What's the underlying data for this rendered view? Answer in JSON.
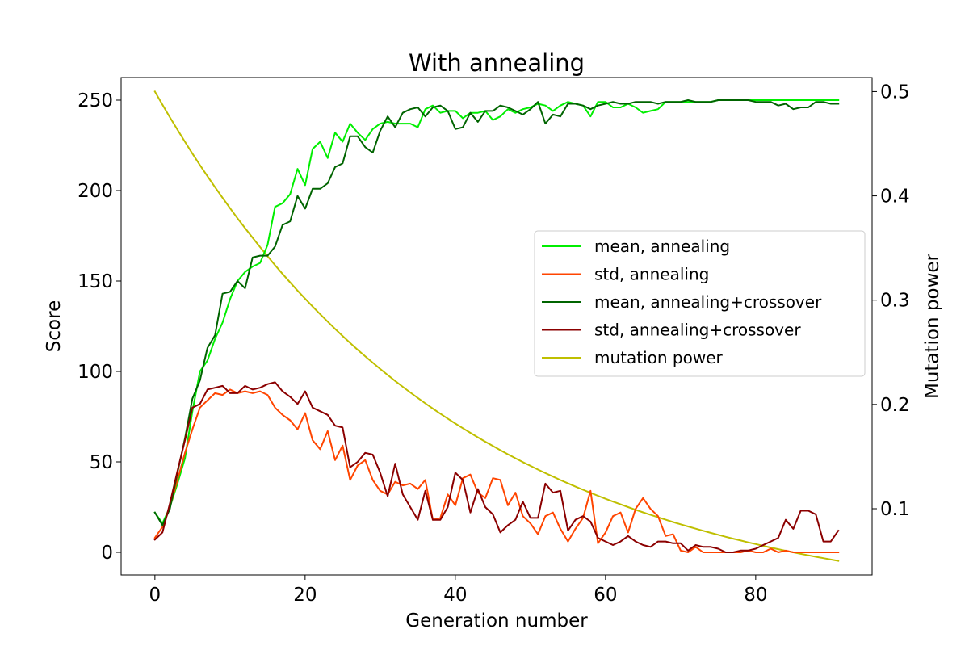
{
  "chart_data": {
    "type": "line",
    "title": "With annealing",
    "xlabel": "Generation number",
    "ylabel": "Score",
    "y2label": "Mutation power",
    "xlim": [
      -4.5,
      95.5
    ],
    "ylim": [
      -12.5,
      262.5
    ],
    "y2lim": [
      0.0365,
      0.5135
    ],
    "xticks": [
      "0",
      "20",
      "40",
      "60",
      "80"
    ],
    "yticks": [
      "0",
      "50",
      "100",
      "150",
      "200",
      "250"
    ],
    "y2ticks": [
      "0.1",
      "0.2",
      "0.3",
      "0.4",
      "0.5"
    ],
    "legend_position": "center-right",
    "series": [
      {
        "name": "mean, annealing",
        "axis": "left",
        "color": "#00ee00",
        "x_start": 0,
        "values": [
          22,
          16,
          25,
          38,
          52,
          78,
          100,
          106,
          118,
          127,
          140,
          150,
          155,
          158,
          160,
          170,
          191,
          193,
          198,
          212,
          203,
          223,
          227,
          218,
          232,
          227,
          237,
          232,
          228,
          234,
          237,
          238,
          237,
          237,
          237,
          235,
          245,
          247,
          243,
          244,
          244,
          240,
          243,
          243,
          244,
          239,
          241,
          245,
          243,
          245,
          246,
          248,
          247,
          244,
          247,
          249,
          248,
          247,
          241,
          249,
          249,
          246,
          246,
          248,
          246,
          243,
          244,
          245,
          249,
          249,
          249,
          249,
          249,
          249,
          249,
          250,
          250,
          250,
          250,
          250,
          250,
          250,
          250,
          250,
          250,
          250,
          250,
          250,
          250,
          250,
          250,
          250
        ]
      },
      {
        "name": "std, annealing",
        "axis": "left",
        "color": "#ff4500",
        "x_start": 0,
        "values": [
          8,
          14,
          25,
          40,
          55,
          68,
          80,
          84,
          88,
          87,
          90,
          88,
          89,
          88,
          89,
          87,
          80,
          76,
          73,
          68,
          77,
          62,
          57,
          67,
          51,
          59,
          40,
          48,
          51,
          40,
          34,
          32,
          39,
          37,
          38,
          35,
          40,
          18,
          19,
          32,
          26,
          41,
          43,
          33,
          30,
          41,
          40,
          26,
          33,
          20,
          16,
          10,
          20,
          22,
          13,
          6,
          13,
          19,
          34,
          5,
          11,
          20,
          22,
          11,
          24,
          30,
          24,
          20,
          9,
          10,
          1,
          0,
          3,
          0,
          0,
          0,
          0,
          0,
          0,
          1,
          0,
          0,
          2,
          0,
          1,
          0,
          0,
          0,
          0,
          0,
          0,
          0
        ]
      },
      {
        "name": "mean, annealing+crossover",
        "axis": "left",
        "color": "#006400",
        "x_start": 0,
        "values": [
          22,
          15,
          24,
          44,
          63,
          85,
          95,
          113,
          120,
          143,
          144,
          150,
          146,
          163,
          164,
          164,
          169,
          181,
          183,
          197,
          190,
          201,
          201,
          204,
          213,
          215,
          230,
          230,
          224,
          221,
          233,
          241,
          235,
          243,
          245,
          246,
          241,
          246,
          247,
          244,
          234,
          235,
          243,
          238,
          244,
          244,
          247,
          246,
          244,
          242,
          245,
          249,
          237,
          242,
          241,
          248,
          248,
          247,
          245,
          247,
          248,
          249,
          248,
          248,
          249,
          249,
          249,
          248,
          249,
          249,
          249,
          250,
          249,
          249,
          249,
          250,
          250,
          250,
          250,
          250,
          249,
          249,
          249,
          247,
          248,
          245,
          246,
          246,
          249,
          249,
          248,
          248
        ]
      },
      {
        "name": "std, annealing+crossover",
        "axis": "left",
        "color": "#8b0000",
        "x_start": 0,
        "values": [
          7,
          11,
          27,
          45,
          62,
          80,
          82,
          90,
          91,
          92,
          88,
          88,
          92,
          90,
          91,
          93,
          94,
          89,
          86,
          82,
          89,
          80,
          78,
          76,
          70,
          69,
          47,
          50,
          55,
          54,
          44,
          31,
          49,
          32,
          25,
          18,
          34,
          18,
          18,
          25,
          44,
          40,
          22,
          35,
          25,
          21,
          11,
          15,
          18,
          28,
          19,
          19,
          38,
          33,
          34,
          12,
          18,
          20,
          17,
          8,
          6,
          4,
          6,
          9,
          6,
          4,
          3,
          6,
          6,
          5,
          5,
          1,
          4,
          3,
          3,
          2,
          0,
          0,
          1,
          1,
          2,
          4,
          6,
          8,
          18,
          13,
          23,
          23,
          21,
          6,
          6,
          12
        ]
      },
      {
        "name": "mutation power",
        "axis": "right",
        "color": "#bfbf00",
        "function": "exponential decay from 0.5 at generation 0 to 0.05 at generation 91",
        "x_range": [
          0,
          91
        ],
        "y_range": [
          0.5,
          0.05
        ]
      }
    ]
  }
}
